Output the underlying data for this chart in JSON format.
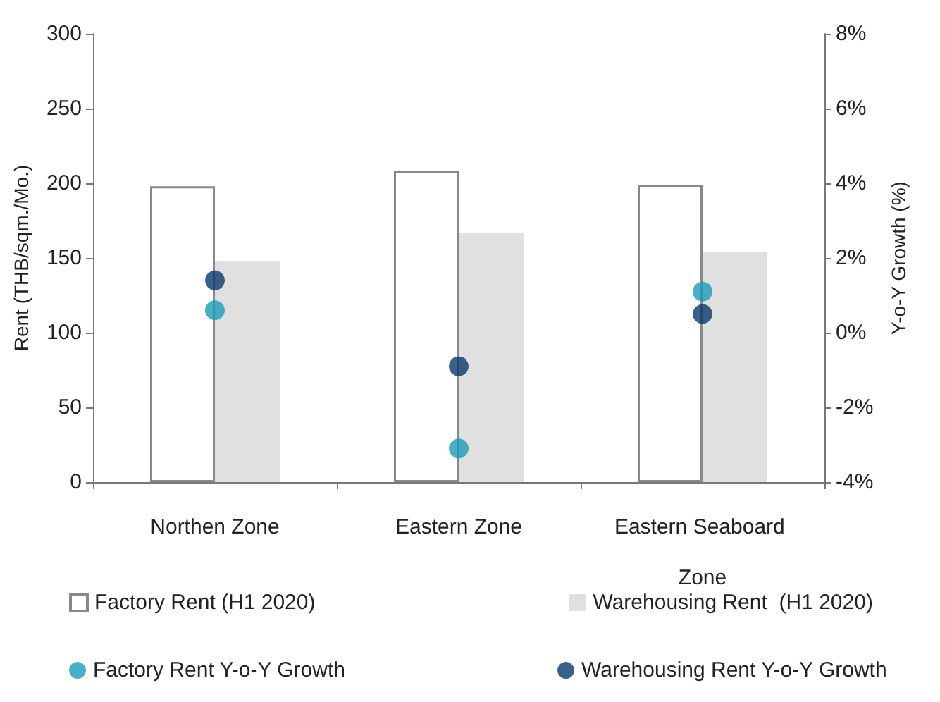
{
  "chart_data": {
    "type": "bar",
    "ylabel": "Rent (THB/sqm./Mo.)",
    "y2label": "Y-o-Y Growth (%)",
    "categories": [
      "Northen Zone",
      "Eastern Zone",
      "Eastern Seaboard Zone"
    ],
    "series": [
      {
        "name": "Factory Rent (H1 2020)",
        "color": "#ffffff",
        "values": [
          198,
          208,
          199
        ]
      },
      {
        "name": "Warehousing Rent  (H1 2020)",
        "color": "#e0e0e0",
        "values": [
          148,
          167,
          154
        ]
      },
      {
        "name": "Factory Rent Y-o-Y Growth",
        "type": "scatter",
        "axis": "y2",
        "color": "#1b9bb8",
        "x": [
          "Northen Zone",
          "Eastern Zone",
          "Eastern Seaboard Zone"
        ],
        "values": [
          0.6,
          -3.1,
          1.1
        ]
      },
      {
        "name": "Warehousing Rent Y-o-Y Growth",
        "type": "scatter",
        "axis": "y2",
        "color": "#0a3a6b",
        "x": [
          "Northen Zone",
          "Eastern Zone",
          "Eastern Seaboard Zone"
        ],
        "values": [
          1.4,
          -0.9,
          0.5
        ]
      }
    ],
    "ylim": [
      0,
      300
    ],
    "yticks": [
      0,
      50,
      100,
      150,
      200,
      250,
      300
    ],
    "y2lim": [
      -4,
      8
    ],
    "y2ticks": [
      {
        "value": -4,
        "label": "-4%"
      },
      {
        "value": -2,
        "label": "-2%"
      },
      {
        "value": 0,
        "label": "0%"
      },
      {
        "value": 2,
        "label": "2%"
      },
      {
        "value": 4,
        "label": "4%"
      },
      {
        "value": 6,
        "label": "6%"
      },
      {
        "value": 8,
        "label": "8%"
      }
    ],
    "grid": false,
    "legend": "bottom",
    "marker": "circle"
  }
}
